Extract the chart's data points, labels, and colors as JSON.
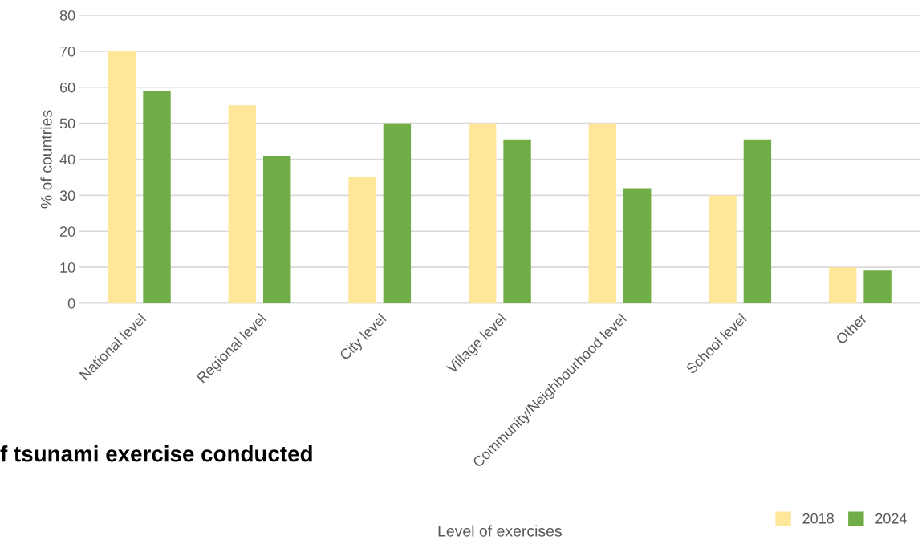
{
  "chart_data": {
    "type": "bar",
    "xlabel": "Level of exercises",
    "ylabel": "% of countries",
    "categories": [
      "National level",
      "Regional level",
      "City level",
      "Village level",
      "Community/Neighbourhood level",
      "School level",
      "Other"
    ],
    "series": [
      {
        "name": "2018",
        "color": "#ffe699",
        "values": [
          70,
          55,
          35,
          50,
          50,
          30,
          10
        ]
      },
      {
        "name": "2024",
        "color": "#70ad47",
        "values": [
          59,
          41,
          50,
          45.5,
          32,
          45.5,
          9.1
        ]
      }
    ],
    "ylim": [
      0,
      80
    ],
    "yticks": [
      0,
      10,
      20,
      30,
      40,
      50,
      60,
      70,
      80
    ],
    "grid": "y",
    "legend": "bottom right",
    "annotations": [
      "f tsunami exercise conducted"
    ]
  }
}
